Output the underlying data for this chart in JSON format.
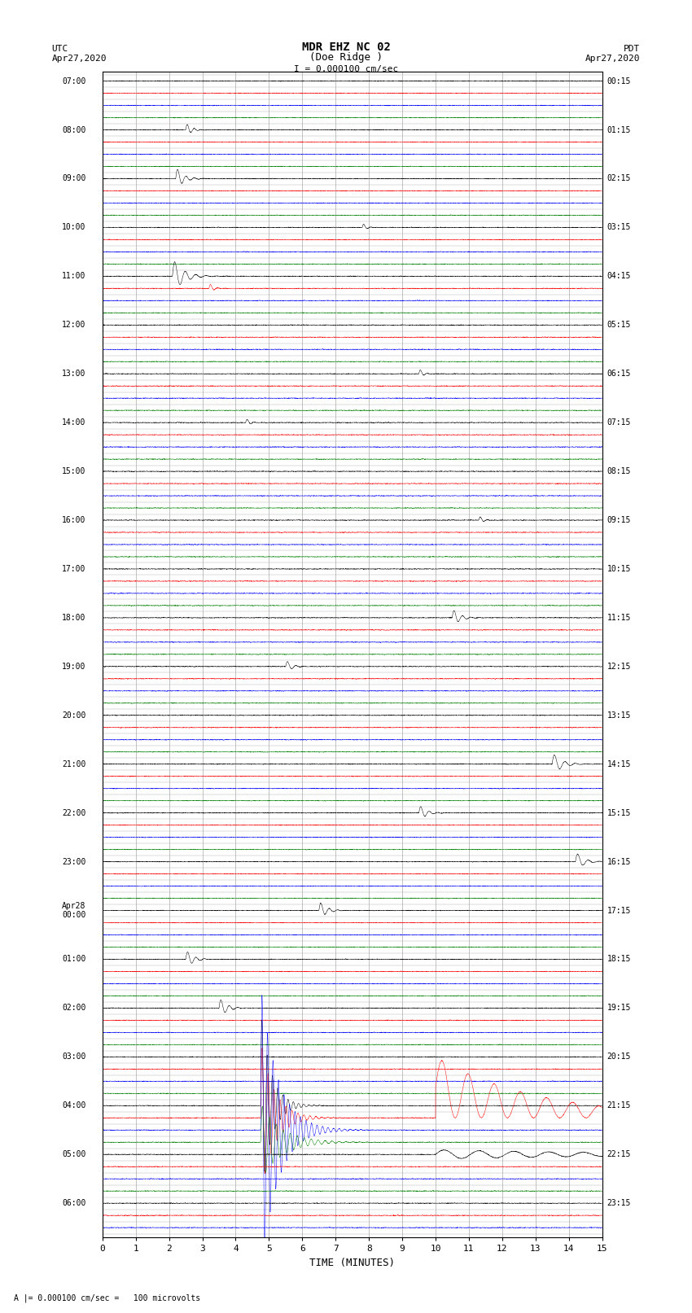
{
  "title_line1": "MDR EHZ NC 02",
  "title_line2": "(Doe Ridge )",
  "scale_label": "I = 0.000100 cm/sec",
  "bottom_label": "A |= 0.000100 cm/sec =   100 microvolts",
  "left_date_line1": "UTC",
  "left_date_line2": "Apr27,2020",
  "right_date_line1": "PDT",
  "right_date_line2": "Apr27,2020",
  "xlabel": "TIME (MINUTES)",
  "xlim": [
    0,
    15
  ],
  "xticks": [
    0,
    1,
    2,
    3,
    4,
    5,
    6,
    7,
    8,
    9,
    10,
    11,
    12,
    13,
    14,
    15
  ],
  "n_rows": 95,
  "colors_cycle": [
    "black",
    "red",
    "blue",
    "green"
  ],
  "noise_amplitude": 0.018,
  "bg_color": "white",
  "grid_color": "#aaaaaa",
  "text_color": "black",
  "left_times_every4": [
    "07:00",
    "08:00",
    "09:00",
    "10:00",
    "11:00",
    "12:00",
    "13:00",
    "14:00",
    "15:00",
    "16:00",
    "17:00",
    "18:00",
    "19:00",
    "20:00",
    "21:00",
    "22:00",
    "23:00",
    "Apr28\n00:00",
    "01:00",
    "02:00",
    "03:00",
    "04:00",
    "05:00",
    "06:00"
  ],
  "right_times_every4": [
    "00:15",
    "01:15",
    "02:15",
    "03:15",
    "04:15",
    "05:15",
    "06:15",
    "07:15",
    "08:15",
    "09:15",
    "10:15",
    "11:15",
    "12:15",
    "13:15",
    "14:15",
    "15:15",
    "16:15",
    "17:15",
    "18:15",
    "19:15",
    "20:15",
    "21:15",
    "22:15",
    "23:15"
  ],
  "special_spikes": [
    {
      "row": 4,
      "time": 2.5,
      "amp": 0.6,
      "freq": 30,
      "decay": 0.15
    },
    {
      "row": 8,
      "time": 2.2,
      "amp": 1.0,
      "freq": 25,
      "decay": 0.2
    },
    {
      "row": 12,
      "time": 7.8,
      "amp": 0.4,
      "freq": 30,
      "decay": 0.1
    },
    {
      "row": 16,
      "time": 2.1,
      "amp": 1.5,
      "freq": 20,
      "decay": 0.3
    },
    {
      "row": 17,
      "time": 3.2,
      "amp": 0.5,
      "freq": 30,
      "decay": 0.1
    },
    {
      "row": 24,
      "time": 9.5,
      "amp": 0.5,
      "freq": 30,
      "decay": 0.1
    },
    {
      "row": 28,
      "time": 4.3,
      "amp": 0.4,
      "freq": 30,
      "decay": 0.1
    },
    {
      "row": 36,
      "time": 11.3,
      "amp": 0.4,
      "freq": 30,
      "decay": 0.1
    },
    {
      "row": 44,
      "time": 10.5,
      "amp": 0.8,
      "freq": 25,
      "decay": 0.2
    },
    {
      "row": 48,
      "time": 5.5,
      "amp": 0.6,
      "freq": 25,
      "decay": 0.15
    },
    {
      "row": 56,
      "time": 13.5,
      "amp": 1.0,
      "freq": 20,
      "decay": 0.25
    },
    {
      "row": 60,
      "time": 9.5,
      "amp": 0.7,
      "freq": 25,
      "decay": 0.2
    },
    {
      "row": 64,
      "time": 14.2,
      "amp": 0.9,
      "freq": 20,
      "decay": 0.2
    },
    {
      "row": 68,
      "time": 6.5,
      "amp": 0.8,
      "freq": 25,
      "decay": 0.2
    },
    {
      "row": 72,
      "time": 2.5,
      "amp": 0.8,
      "freq": 25,
      "decay": 0.2
    },
    {
      "row": 76,
      "time": 3.5,
      "amp": 0.9,
      "freq": 25,
      "decay": 0.2
    }
  ],
  "earthquake_row": 84,
  "earthquake_time": 4.75,
  "earthquake_amp": 8.0,
  "earthquake_coda_amp": 2.5,
  "earthquake_coda_time": 10.0,
  "earthquake_decay": 3.0
}
